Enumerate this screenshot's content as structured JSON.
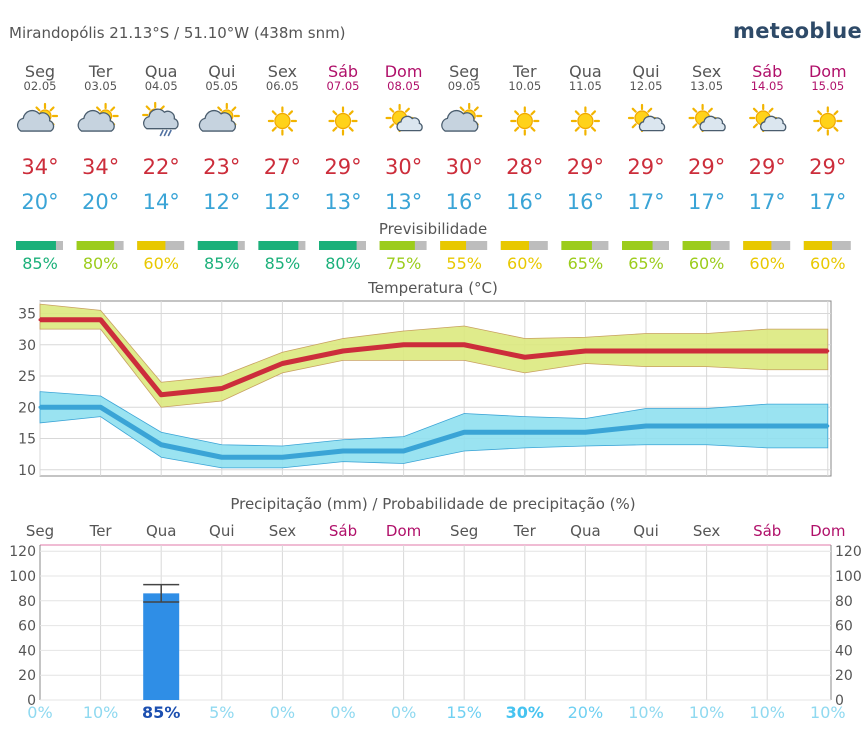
{
  "header": {
    "location": "Mirandopólis  21.13°S / 51.10°W (438m snm)",
    "brand": "meteoblue"
  },
  "colors": {
    "weekend": "#b0106a",
    "weekday": "#555555",
    "temp_max": "#cc2d3b",
    "temp_min": "#3aa4d6",
    "band_max": "#dce97e",
    "band_min": "#8fe0ef",
    "precip_bar": "#2f8ee6",
    "prob_low": "#8fd9f0",
    "prob_high": "#1c4fb0"
  },
  "days": [
    {
      "name": "Seg",
      "date": "02.05",
      "weekend": false,
      "icon": "partly-cloudy-icon",
      "tmax": "34°",
      "tmin": "20°",
      "pred": "85%",
      "pred_color": "#1bb07a",
      "prob": "0%"
    },
    {
      "name": "Ter",
      "date": "03.05",
      "weekend": false,
      "icon": "partly-cloudy-icon",
      "tmax": "34°",
      "tmin": "20°",
      "pred": "80%",
      "pred_color": "#9ccc1c",
      "prob": "10%"
    },
    {
      "name": "Qua",
      "date": "04.05",
      "weekend": false,
      "icon": "rain-shower-icon",
      "tmax": "22°",
      "tmin": "14°",
      "pred": "60%",
      "pred_color": "#e8c800",
      "prob": "85%"
    },
    {
      "name": "Qui",
      "date": "05.05",
      "weekend": false,
      "icon": "partly-cloudy-icon",
      "tmax": "23°",
      "tmin": "12°",
      "pred": "85%",
      "pred_color": "#1bb07a",
      "prob": "5%"
    },
    {
      "name": "Sex",
      "date": "06.05",
      "weekend": false,
      "icon": "sun-icon",
      "tmax": "27°",
      "tmin": "12°",
      "pred": "85%",
      "pred_color": "#1bb07a",
      "prob": "0%"
    },
    {
      "name": "Sáb",
      "date": "07.05",
      "weekend": true,
      "icon": "sun-icon",
      "tmax": "29°",
      "tmin": "13°",
      "pred": "80%",
      "pred_color": "#1bb07a",
      "prob": "0%"
    },
    {
      "name": "Dom",
      "date": "08.05",
      "weekend": true,
      "icon": "sun-cloud-icon",
      "tmax": "30°",
      "tmin": "13°",
      "pred": "75%",
      "pred_color": "#9ccc1c",
      "prob": "0%"
    },
    {
      "name": "Seg",
      "date": "09.05",
      "weekend": false,
      "icon": "partly-cloudy-icon",
      "tmax": "30°",
      "tmin": "16°",
      "pred": "55%",
      "pred_color": "#e8c800",
      "prob": "15%"
    },
    {
      "name": "Ter",
      "date": "10.05",
      "weekend": false,
      "icon": "sun-icon",
      "tmax": "28°",
      "tmin": "16°",
      "pred": "60%",
      "pred_color": "#e8c800",
      "prob": "30%"
    },
    {
      "name": "Qua",
      "date": "11.05",
      "weekend": false,
      "icon": "sun-icon",
      "tmax": "29°",
      "tmin": "16°",
      "pred": "65%",
      "pred_color": "#9ccc1c",
      "prob": "20%"
    },
    {
      "name": "Qui",
      "date": "12.05",
      "weekend": false,
      "icon": "sun-cloud-icon",
      "tmax": "29°",
      "tmin": "17°",
      "pred": "65%",
      "pred_color": "#9ccc1c",
      "prob": "10%"
    },
    {
      "name": "Sex",
      "date": "13.05",
      "weekend": false,
      "icon": "sun-cloud-icon",
      "tmax": "29°",
      "tmin": "17°",
      "pred": "60%",
      "pred_color": "#9ccc1c",
      "prob": "10%"
    },
    {
      "name": "Sáb",
      "date": "14.05",
      "weekend": true,
      "icon": "sun-cloud-icon",
      "tmax": "29°",
      "tmin": "17°",
      "pred": "60%",
      "pred_color": "#e8c800",
      "prob": "10%"
    },
    {
      "name": "Dom",
      "date": "15.05",
      "weekend": true,
      "icon": "sun-icon",
      "tmax": "29°",
      "tmin": "17°",
      "pred": "60%",
      "pred_color": "#e8c800",
      "prob": "10%"
    }
  ],
  "chart_data": [
    {
      "type": "line",
      "title": "Temperatura (°C)",
      "ylim": [
        9,
        37
      ],
      "yticks": [
        10,
        15,
        20,
        25,
        30,
        35
      ],
      "grid": true,
      "series": [
        {
          "values": [
            34,
            34,
            22,
            23,
            27,
            29,
            30,
            30,
            28,
            29,
            29,
            29,
            29,
            29
          ],
          "range_low": [
            32.5,
            32.5,
            20,
            21,
            25.5,
            27.5,
            27.5,
            27.5,
            25.5,
            27,
            26.5,
            26.5,
            26,
            26
          ],
          "range_high": [
            36.5,
            35.5,
            24,
            25,
            28.8,
            31,
            32.2,
            33,
            31,
            31.2,
            31.8,
            31.8,
            32.5,
            32.5
          ]
        },
        {
          "values": [
            20,
            20,
            14,
            12,
            12,
            13,
            13,
            16,
            16,
            16,
            17,
            17,
            17,
            17
          ],
          "range_low": [
            17.5,
            18.5,
            12,
            10.3,
            10.3,
            11.3,
            11,
            13,
            13.5,
            13.8,
            14,
            14,
            13.5,
            13.5
          ],
          "range_high": [
            22.5,
            21.8,
            16,
            14,
            13.8,
            14.8,
            15.3,
            19,
            18.5,
            18.2,
            19.8,
            19.8,
            20.5,
            20.5
          ]
        }
      ]
    },
    {
      "type": "bar",
      "title": "Precipitação (mm) / Probabilidade de precipitação (%)",
      "categories": [
        "Seg",
        "Ter",
        "Qua",
        "Qui",
        "Sex",
        "Sáb",
        "Dom",
        "Seg",
        "Ter",
        "Qua",
        "Qui",
        "Sex",
        "Sáb",
        "Dom"
      ],
      "values": [
        0,
        0,
        86,
        0,
        0,
        0,
        0,
        0,
        0,
        0,
        0,
        0,
        0,
        0
      ],
      "error_low": [
        null,
        null,
        79,
        null,
        null,
        null,
        null,
        null,
        null,
        null,
        null,
        null,
        null,
        null
      ],
      "error_high": [
        null,
        null,
        93,
        null,
        null,
        null,
        null,
        null,
        null,
        null,
        null,
        null,
        null,
        null
      ],
      "probability": [
        "0%",
        "10%",
        "85%",
        "5%",
        "0%",
        "0%",
        "0%",
        "15%",
        "30%",
        "20%",
        "10%",
        "10%",
        "10%",
        "10%"
      ],
      "ylim": [
        0,
        125
      ],
      "yticks": [
        0,
        20,
        40,
        60,
        80,
        100,
        120
      ],
      "grid": true
    }
  ],
  "labels": {
    "predictability": "Previsibilidade"
  }
}
